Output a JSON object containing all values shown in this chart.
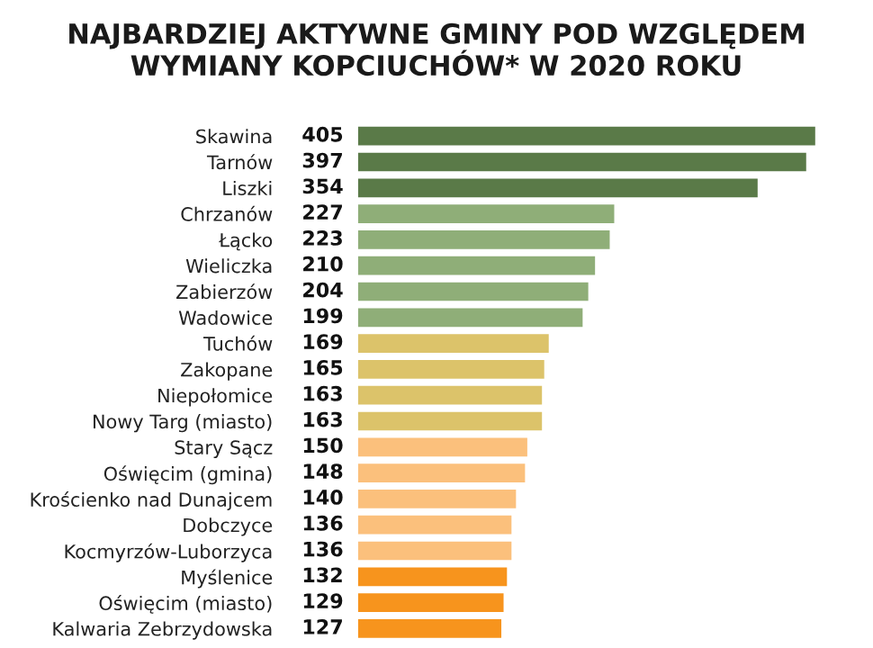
{
  "chart_data": {
    "type": "bar",
    "orientation": "horizontal",
    "title": "NAJBARDZIEJ AKTYWNE GMINY POD WZGLĘDEM\nWYMIANY KOPCIUCHÓW* W 2020 ROKU",
    "categories": [
      "Skawina",
      "Tarnów",
      "Liszki",
      "Chrzanów",
      "Łącko",
      "Wieliczka",
      "Zabierzów",
      "Wadowice",
      "Tuchów",
      "Zakopane",
      "Niepołomice",
      "Nowy Targ (miasto)",
      "Stary Sącz",
      "Oświęcim (gmina)",
      "Krościenko nad Dunajcem",
      "Dobczyce",
      "Kocmyrzów-Luborzyca",
      "Myślenice",
      "Oświęcim (miasto)",
      "Kalwaria Zebrzydowska"
    ],
    "values": [
      405,
      397,
      354,
      227,
      223,
      210,
      204,
      199,
      169,
      165,
      163,
      163,
      150,
      148,
      140,
      136,
      136,
      132,
      129,
      127
    ],
    "colors": [
      "#5a7a48",
      "#5a7a48",
      "#5a7a48",
      "#8fae78",
      "#8fae78",
      "#8fae78",
      "#8fae78",
      "#8fae78",
      "#dcc36a",
      "#dcc36a",
      "#dcc36a",
      "#dcc36a",
      "#fbc07c",
      "#fbc07c",
      "#fbc07c",
      "#fbc07c",
      "#fbc07c",
      "#f7941d",
      "#f7941d",
      "#f7941d"
    ],
    "data_labels": true,
    "tick_labels": "y",
    "grid": false,
    "legend": false
  }
}
